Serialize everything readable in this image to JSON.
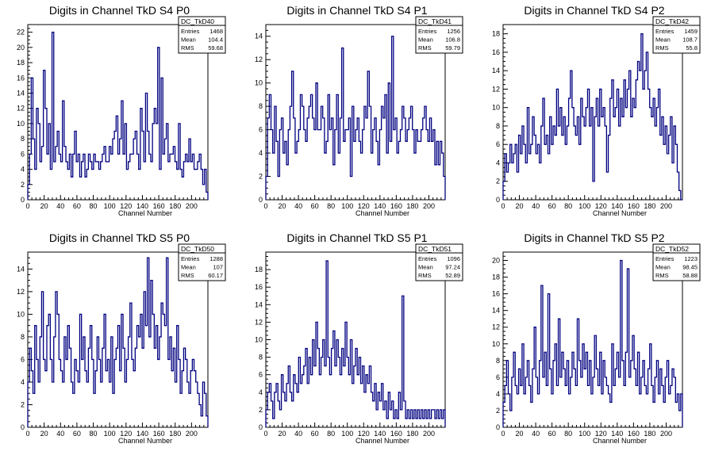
{
  "chart_data": [
    {
      "type": "histogram",
      "title": "Digits in Channel TkD S4 P0",
      "xlabel": "Channel Number",
      "xlim": [
        0,
        220
      ],
      "ylim": [
        0,
        23
      ],
      "xticks": [
        0,
        20,
        40,
        60,
        80,
        100,
        120,
        140,
        160,
        180,
        200
      ],
      "yticks": [
        0,
        2,
        4,
        6,
        8,
        10,
        12,
        14,
        16,
        18,
        20,
        22
      ],
      "stats": {
        "name": "DC_TkD40",
        "entries_label": "Entries",
        "entries": "1468",
        "mean_label": "Mean",
        "mean": "104.4",
        "rms_label": "RMS",
        "rms": "59.68"
      },
      "values": [
        2,
        6,
        16,
        8,
        4,
        12,
        10,
        5,
        7,
        17,
        12,
        6,
        10,
        4,
        22,
        5,
        7,
        9,
        6,
        5,
        13,
        7,
        5,
        4,
        6,
        3,
        6,
        9,
        5,
        6,
        3,
        5,
        6,
        3,
        4,
        6,
        5,
        4,
        6,
        5,
        5,
        4,
        5,
        6,
        7,
        5,
        5,
        7,
        6,
        8,
        9,
        11,
        6,
        8,
        13,
        6,
        10,
        4,
        5,
        6,
        6,
        8,
        9,
        6,
        4,
        12,
        9,
        5,
        14,
        9,
        6,
        5,
        10,
        12,
        10,
        20,
        4,
        16,
        6,
        8,
        10,
        5,
        6,
        6,
        7,
        5,
        4,
        10,
        4,
        3,
        5,
        6,
        5,
        8,
        5,
        6,
        4,
        4,
        5,
        6,
        4,
        2,
        4,
        1
      ]
    },
    {
      "type": "histogram",
      "title": "Digits in Channel TkD S4 P1",
      "xlabel": "Channel Number",
      "xlim": [
        0,
        220
      ],
      "ylim": [
        0,
        15
      ],
      "xticks": [
        0,
        20,
        40,
        60,
        80,
        100,
        120,
        140,
        160,
        180,
        200
      ],
      "yticks": [
        0,
        2,
        4,
        6,
        8,
        10,
        12,
        14
      ],
      "stats": {
        "name": "DC_TkD41",
        "entries_label": "Entries",
        "entries": "1256",
        "mean_label": "Mean",
        "mean": "106.8",
        "rms_label": "RMS",
        "rms": "59.79"
      },
      "values": [
        2,
        7,
        9,
        6,
        4,
        8,
        5,
        2,
        6,
        7,
        4,
        5,
        3,
        6,
        8,
        11,
        7,
        4,
        5,
        6,
        9,
        8,
        6,
        5,
        7,
        8,
        9,
        7,
        6,
        10,
        6,
        6,
        8,
        7,
        4,
        5,
        9,
        6,
        7,
        3,
        6,
        9,
        4,
        7,
        13,
        5,
        6,
        6,
        7,
        2,
        8,
        5,
        6,
        7,
        5,
        4,
        6,
        8,
        7,
        11,
        8,
        4,
        6,
        7,
        5,
        3,
        6,
        8,
        7,
        9,
        4,
        10,
        5,
        14,
        6,
        7,
        4,
        5,
        6,
        8,
        7,
        5,
        6,
        7,
        8,
        6,
        4,
        6,
        5,
        5,
        6,
        7,
        8,
        6,
        5,
        7,
        5,
        6,
        3,
        5,
        3,
        5,
        4,
        2
      ]
    },
    {
      "type": "histogram",
      "title": "Digits in Channel TkD S4 P2",
      "xlabel": "Channel Number",
      "xlim": [
        0,
        220
      ],
      "ylim": [
        0,
        19
      ],
      "xticks": [
        0,
        20,
        40,
        60,
        80,
        100,
        120,
        140,
        160,
        180,
        200
      ],
      "yticks": [
        0,
        2,
        4,
        6,
        8,
        10,
        12,
        14,
        16,
        18
      ],
      "stats": {
        "name": "DC_TkD42",
        "entries_label": "Entries",
        "entries": "1459",
        "mean_label": "Mean",
        "mean": "108.7",
        "rms_label": "RMS",
        "rms": "55.8"
      },
      "values": [
        2,
        5,
        3,
        4,
        6,
        4,
        5,
        6,
        3,
        7,
        5,
        8,
        6,
        4,
        10,
        5,
        6,
        9,
        7,
        5,
        6,
        4,
        8,
        11,
        6,
        7,
        5,
        9,
        6,
        8,
        7,
        12,
        8,
        10,
        7,
        9,
        6,
        8,
        11,
        14,
        10,
        8,
        7,
        9,
        6,
        11,
        9,
        8,
        10,
        12,
        8,
        10,
        2,
        9,
        11,
        8,
        12,
        9,
        10,
        8,
        3,
        7,
        11,
        13,
        9,
        10,
        12,
        8,
        11,
        9,
        13,
        10,
        12,
        14,
        9,
        11,
        10,
        13,
        15,
        14,
        18,
        12,
        14,
        16,
        12,
        10,
        9,
        11,
        8,
        10,
        12,
        7,
        9,
        6,
        8,
        5,
        7,
        9,
        4,
        8,
        6,
        3,
        1,
        0
      ]
    },
    {
      "type": "histogram",
      "title": "Digits in Channel TkD S5 P0",
      "xlabel": "Channel Number",
      "xlim": [
        0,
        220
      ],
      "ylim": [
        0,
        15.5
      ],
      "xticks": [
        0,
        20,
        40,
        60,
        80,
        100,
        120,
        140,
        160,
        180,
        200
      ],
      "yticks": [
        0,
        2,
        4,
        6,
        8,
        10,
        12,
        14
      ],
      "stats": {
        "name": "DC_TkD50",
        "entries_label": "Entries",
        "entries": "1288",
        "mean_label": "Mean",
        "mean": "107",
        "rms_label": "RMS",
        "rms": "60.17"
      },
      "values": [
        4,
        7,
        5,
        3,
        9,
        6,
        4,
        8,
        12,
        6,
        5,
        9,
        10,
        6,
        4,
        8,
        12,
        10,
        6,
        5,
        4,
        8,
        6,
        9,
        7,
        4,
        3,
        6,
        5,
        4,
        10,
        6,
        8,
        5,
        4,
        7,
        9,
        6,
        3,
        5,
        8,
        6,
        4,
        7,
        10,
        5,
        6,
        4,
        8,
        3,
        6,
        7,
        9,
        5,
        10,
        7,
        4,
        6,
        8,
        11,
        6,
        5,
        7,
        9,
        8,
        10,
        7,
        12,
        9,
        15,
        8,
        13,
        10,
        7,
        9,
        6,
        8,
        11,
        10,
        9,
        15,
        6,
        8,
        5,
        7,
        4,
        9,
        6,
        3,
        5,
        7,
        6,
        4,
        3,
        5,
        6,
        5,
        4,
        3,
        2,
        1,
        4,
        3,
        1
      ]
    },
    {
      "type": "histogram",
      "title": "Digits in Channel TkD S5 P1",
      "xlabel": "Channel Number",
      "xlim": [
        0,
        220
      ],
      "ylim": [
        0,
        20
      ],
      "xticks": [
        0,
        20,
        40,
        60,
        80,
        100,
        120,
        140,
        160,
        180,
        200
      ],
      "yticks": [
        0,
        2,
        4,
        6,
        8,
        10,
        12,
        14,
        16,
        18
      ],
      "stats": {
        "name": "DC_TkD51",
        "entries_label": "Entries",
        "entries": "1096",
        "mean_label": "Mean",
        "mean": "97.24",
        "rms_label": "RMS",
        "rms": "52.89"
      },
      "values": [
        2,
        4,
        5,
        3,
        1,
        4,
        5,
        3,
        2,
        6,
        4,
        3,
        5,
        7,
        4,
        3,
        6,
        5,
        4,
        8,
        5,
        6,
        7,
        9,
        5,
        8,
        6,
        10,
        7,
        12,
        9,
        6,
        8,
        10,
        7,
        19,
        8,
        6,
        9,
        11,
        7,
        10,
        8,
        6,
        9,
        7,
        12,
        8,
        6,
        10,
        5,
        7,
        9,
        6,
        8,
        5,
        7,
        4,
        6,
        5,
        7,
        4,
        3,
        5,
        2,
        4,
        3,
        5,
        2,
        3,
        1,
        4,
        2,
        3,
        1,
        2,
        1,
        4,
        2,
        15,
        3,
        1,
        2,
        1,
        2,
        1,
        2,
        1,
        2,
        1,
        2,
        1,
        2,
        1,
        2,
        1,
        2,
        2,
        1,
        2,
        1,
        2,
        1,
        2
      ]
    },
    {
      "type": "histogram",
      "title": "Digits in Channel TkD S5 P2",
      "xlabel": "Channel Number",
      "xlim": [
        0,
        220
      ],
      "ylim": [
        0,
        21
      ],
      "xticks": [
        0,
        20,
        40,
        60,
        80,
        100,
        120,
        140,
        160,
        180,
        200
      ],
      "yticks": [
        0,
        2,
        4,
        6,
        8,
        10,
        12,
        14,
        16,
        18,
        20
      ],
      "stats": {
        "name": "DC_TkD52",
        "entries_label": "Entries",
        "entries": "1223",
        "mean_label": "Mean",
        "mean": "98.45",
        "rms_label": "RMS",
        "rms": "58.88"
      },
      "values": [
        3,
        5,
        8,
        4,
        2,
        6,
        9,
        5,
        4,
        7,
        5,
        10,
        4,
        6,
        8,
        5,
        3,
        7,
        12,
        6,
        4,
        8,
        17,
        6,
        9,
        5,
        16,
        7,
        4,
        8,
        10,
        5,
        13,
        6,
        9,
        7,
        5,
        8,
        4,
        6,
        9,
        7,
        5,
        13,
        8,
        6,
        10,
        7,
        9,
        5,
        8,
        4,
        6,
        11,
        7,
        5,
        9,
        4,
        8,
        6,
        5,
        4,
        3,
        10,
        5,
        7,
        9,
        6,
        20,
        8,
        5,
        9,
        19,
        6,
        8,
        11,
        7,
        5,
        9,
        4,
        6,
        8,
        5,
        4,
        7,
        10,
        5,
        3,
        6,
        8,
        4,
        7,
        5,
        3,
        6,
        8,
        4,
        5,
        7,
        6,
        3,
        4,
        2,
        4
      ]
    }
  ]
}
